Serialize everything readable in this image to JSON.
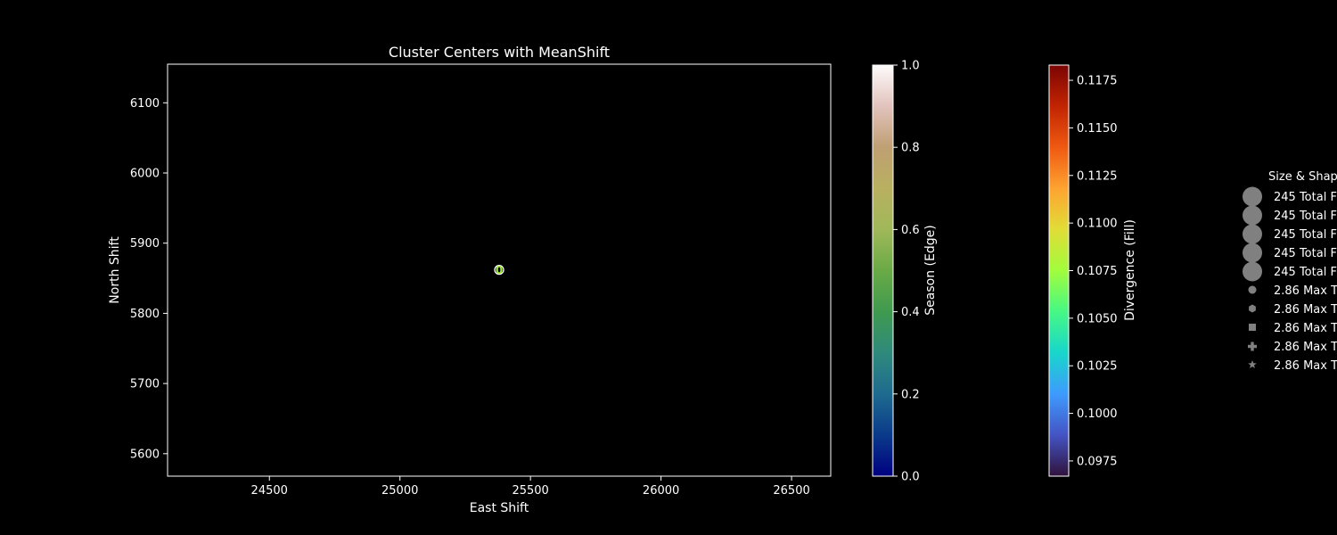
{
  "chart_data": {
    "type": "scatter",
    "title": "Cluster Centers with MeanShift",
    "xlabel": "East Shift",
    "ylabel": "North Shift",
    "xlim": [
      24110,
      26650
    ],
    "ylim": [
      5568,
      6155
    ],
    "xticks": [
      24500,
      25000,
      25500,
      26000,
      26500
    ],
    "yticks": [
      5600,
      5700,
      5800,
      5900,
      6000,
      6100
    ],
    "points": [
      {
        "x": 25380,
        "y": 5862,
        "label": "0",
        "fill_color": "#a3f03a",
        "edge_color": "#ffffff"
      }
    ],
    "colorbar_season": {
      "label": "Season (Edge)",
      "ticks": [
        "0.0",
        "0.2",
        "0.4",
        "0.6",
        "0.8",
        "1.0"
      ],
      "range": [
        0,
        1
      ],
      "colormap": "gist_earth"
    },
    "colorbar_divergence": {
      "label": "Divergence (Fill)",
      "ticks": [
        "0.0975",
        "0.1000",
        "0.1025",
        "0.1050",
        "0.1075",
        "0.1100",
        "0.1125",
        "0.1150",
        "0.1175"
      ],
      "range": [
        0.0967,
        0.1183
      ],
      "colormap": "turbo"
    },
    "legend": {
      "title": "Size & Shap",
      "placement": "right",
      "entries": [
        {
          "marker": "circle-large",
          "label": "245 Total F"
        },
        {
          "marker": "circle-large",
          "label": "245 Total F"
        },
        {
          "marker": "circle-large",
          "label": "245 Total F"
        },
        {
          "marker": "circle-large",
          "label": "245 Total F"
        },
        {
          "marker": "circle-large",
          "label": "245 Total F"
        },
        {
          "marker": "circle",
          "label": "2.86 Max T"
        },
        {
          "marker": "hexagon",
          "label": "2.86 Max T"
        },
        {
          "marker": "square",
          "label": "2.86 Max T"
        },
        {
          "marker": "plus",
          "label": "2.86 Max T"
        },
        {
          "marker": "star",
          "label": "2.86 Max T"
        }
      ]
    }
  }
}
